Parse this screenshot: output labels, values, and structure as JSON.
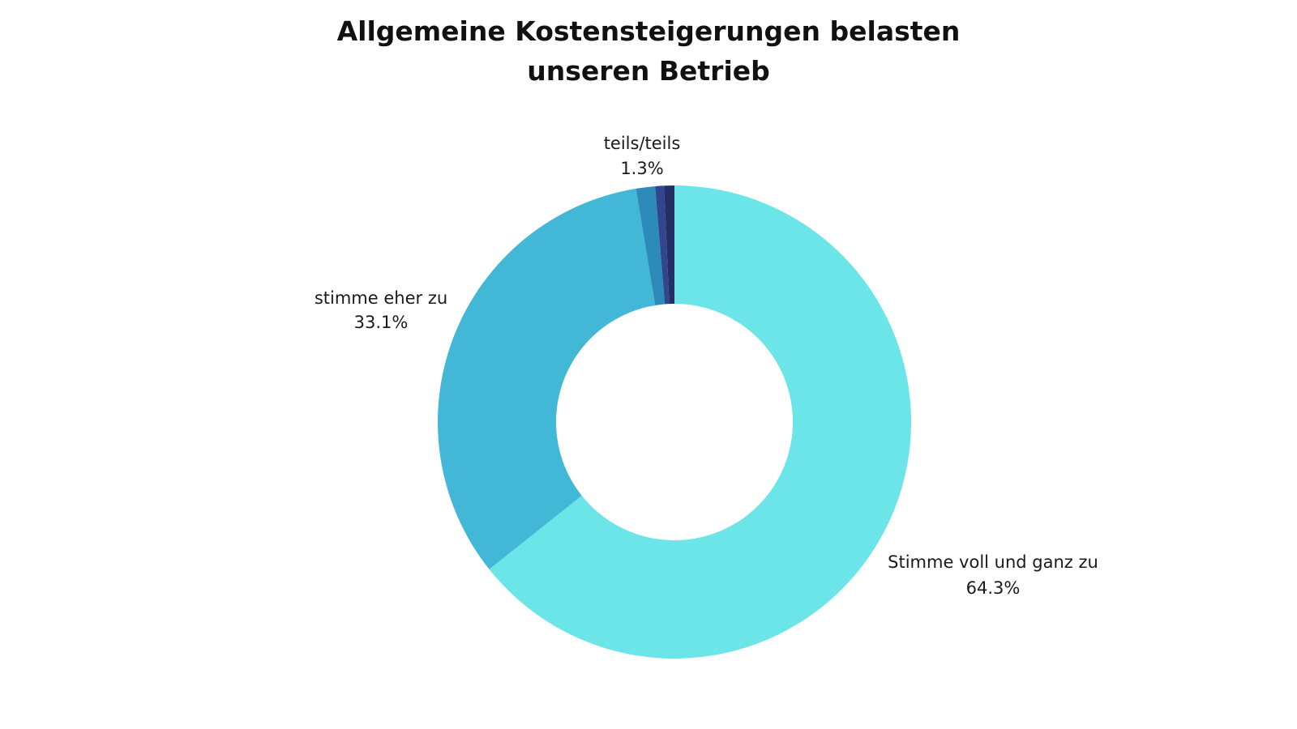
{
  "chart_data": {
    "type": "pie",
    "donut": true,
    "title_lines": [
      "Allgemeine Kostensteigerungen belasten",
      "unseren Betrieb"
    ],
    "slices": [
      {
        "label": "Stimme voll und ganz zu",
        "value_label": "64.3%",
        "value": 64.3,
        "color": "#6CE5E8"
      },
      {
        "label": "stimme eher zu",
        "value_label": "33.1%",
        "value": 33.1,
        "color": "#43B8D6"
      },
      {
        "label": "teils/teils",
        "value_label": "1.3%",
        "value": 1.3,
        "color": "#2D8BBA"
      },
      {
        "label": "",
        "value_label": "",
        "value": 0.6,
        "color": "#31468C"
      },
      {
        "label": "",
        "value_label": "",
        "value": 0.7,
        "color": "#252F66"
      }
    ]
  }
}
